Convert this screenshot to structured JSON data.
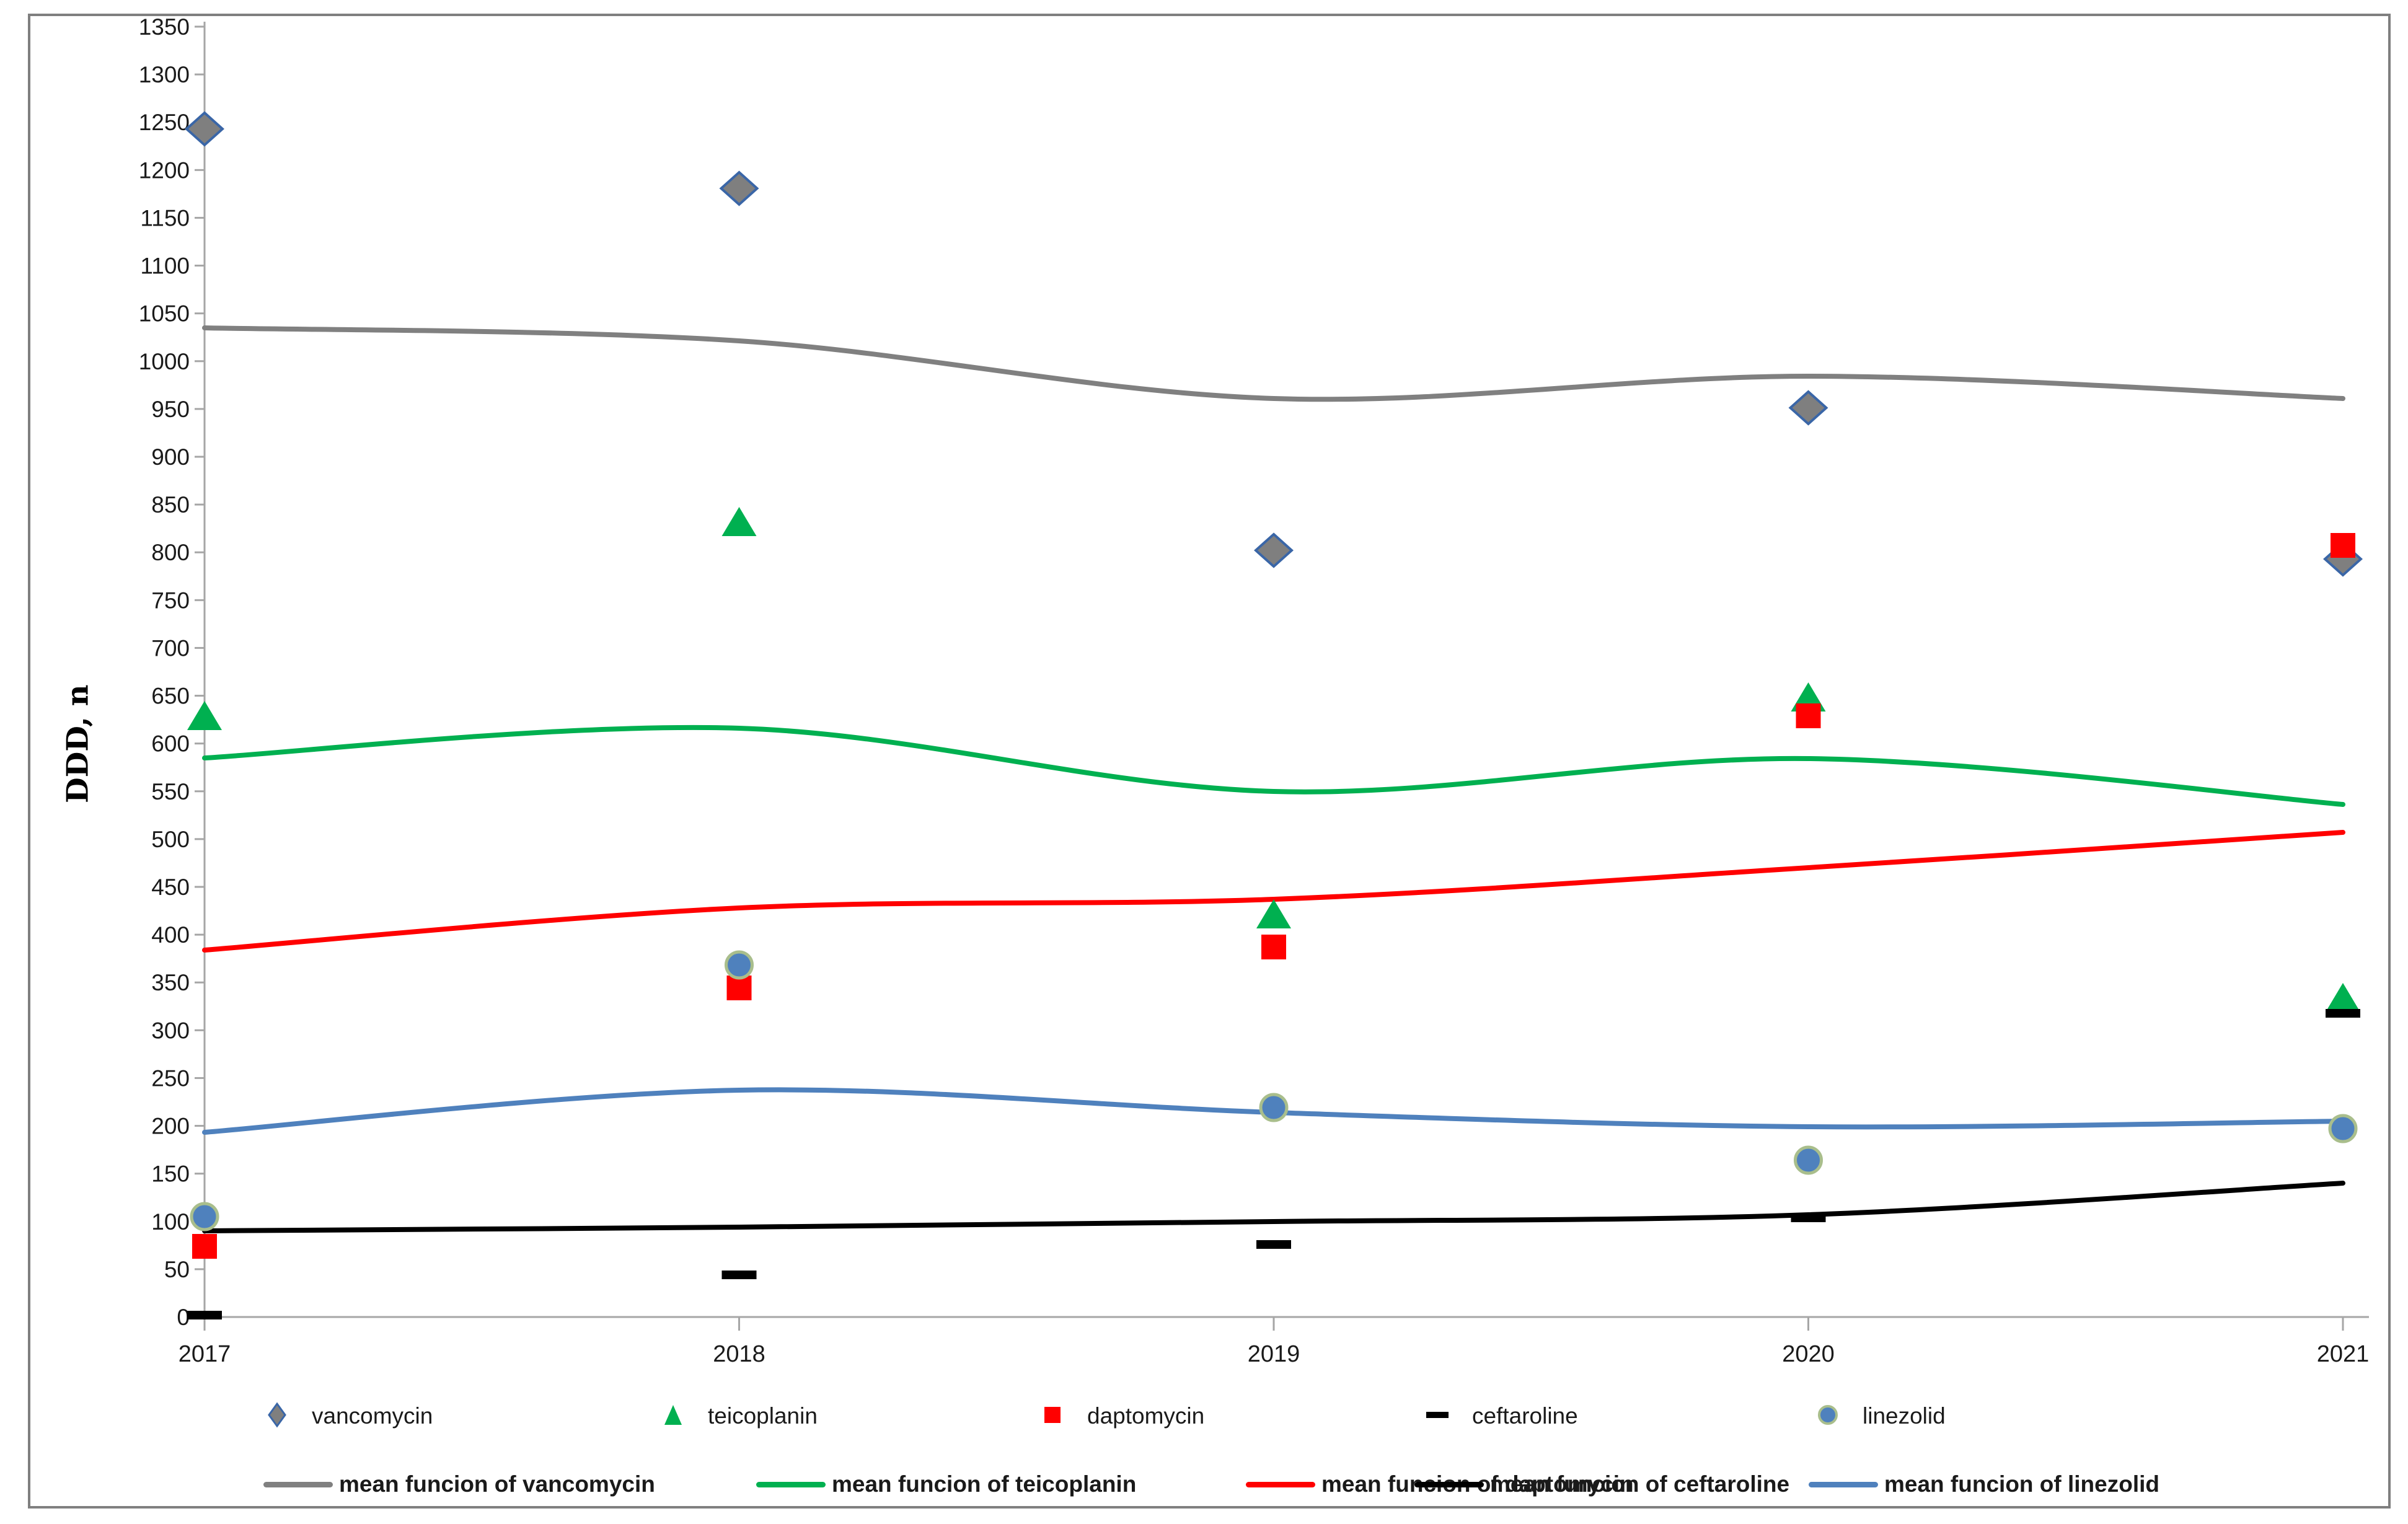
{
  "chart_data": {
    "type": "scatter",
    "title": "",
    "ylabel": "DDD, n",
    "xlabel": "",
    "x": [
      2017,
      2018,
      2019,
      2020,
      2021
    ],
    "ylim": [
      0,
      1350
    ],
    "ytick_step": 50,
    "grid": false,
    "legend_position": "bottom",
    "series": [
      {
        "name": "vancomycin",
        "marker": "diamond",
        "color": "#7F7F7F",
        "border_color": "#3A66A7",
        "values": [
          1243,
          1181,
          802,
          951,
          793
        ]
      },
      {
        "name": "teicoplanin",
        "marker": "triangle",
        "color": "#00B050",
        "border_color": "#00B050",
        "values": [
          628,
          831,
          421,
          648,
          333
        ]
      },
      {
        "name": "daptomycin",
        "marker": "square",
        "color": "#FF0000",
        "border_color": "#FF0000",
        "values": [
          74,
          344,
          387,
          629,
          807
        ]
      },
      {
        "name": "ceftaroline",
        "marker": "dash",
        "color": "#000000",
        "border_color": "#000000",
        "values": [
          2,
          44,
          76,
          104,
          318
        ]
      },
      {
        "name": "linezolid",
        "marker": "circle",
        "color": "#4F81BD",
        "border_color": "#A9BE8C",
        "values": [
          105,
          368,
          219,
          164,
          197
        ]
      }
    ],
    "trend_series": [
      {
        "name": "mean funcion of vancomycin",
        "color": "#808080",
        "values": [
          1035,
          1021,
          961,
          984,
          961
        ]
      },
      {
        "name": "mean funcion of teicoplanin",
        "color": "#00B050",
        "values": [
          585,
          616,
          550,
          584,
          536
        ]
      },
      {
        "name": "mean funcion of daptomycin",
        "color": "#FF0000",
        "values": [
          384,
          428,
          437,
          470,
          507
        ]
      },
      {
        "name": "mean funcion of ceftaroline",
        "color": "#000000",
        "values": [
          90,
          94,
          100,
          107,
          140
        ]
      },
      {
        "name": "mean funcion of linezolid",
        "color": "#4F81BD",
        "values": [
          193,
          237,
          214,
          199,
          205
        ]
      }
    ],
    "axis_color": "#A6A6A6",
    "tick_label_color": "#1a1a1a"
  },
  "frame": {
    "border_color": "#7F7F7F"
  }
}
